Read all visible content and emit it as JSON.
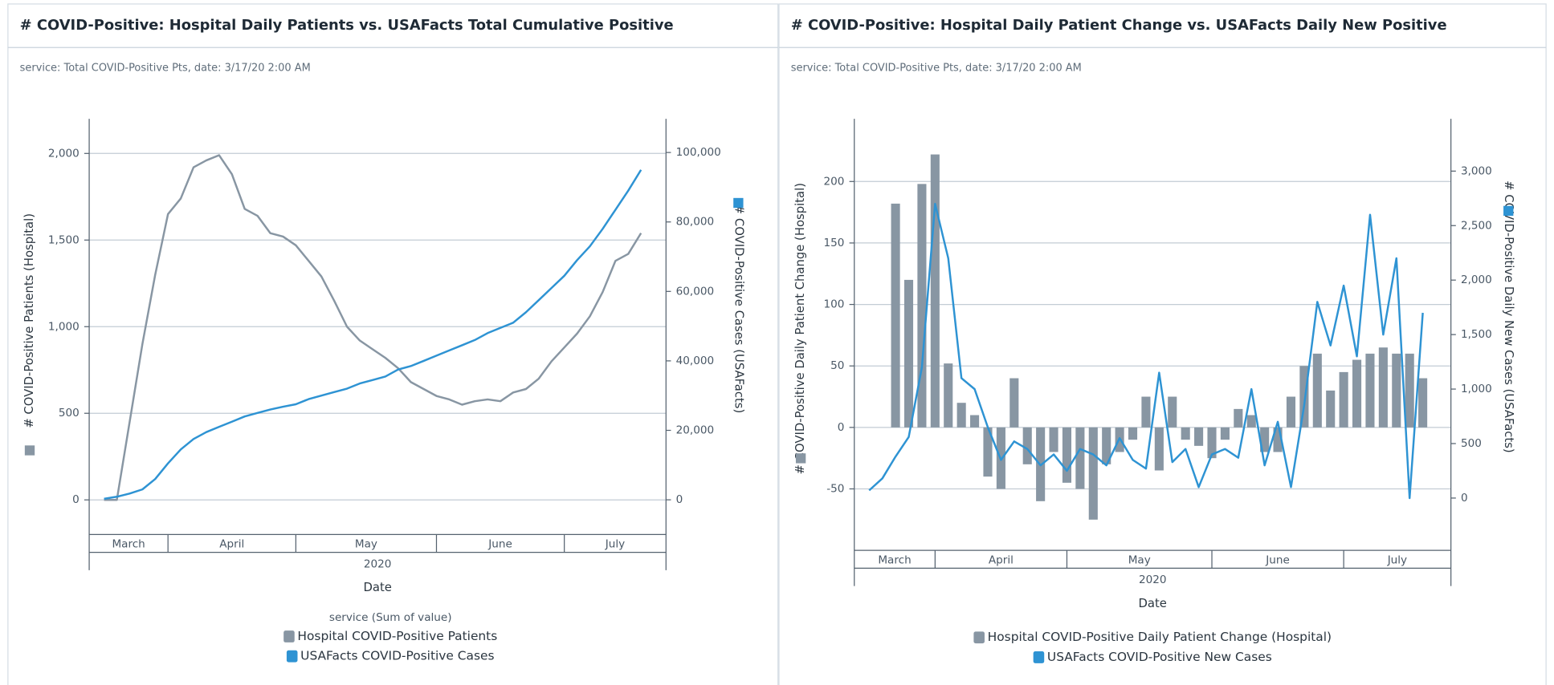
{
  "chart_data": [
    {
      "type": "combo",
      "title": "# COVID-Positive: Hospital Daily Patients vs. USAFacts Total Cumulative Positive",
      "subtitle": "service: Total COVID-Positive Pts, date: 3/17/20 2:00 AM",
      "ylabel": "# COVID-Positive Patients (Hospital)",
      "y2label": "# COVID-Positive Cases (USAFacts)",
      "xlabel": "Date",
      "x_group": "2020",
      "legend_title": "service (Sum of value)",
      "categories": [
        "March",
        null,
        null,
        null,
        null,
        "April",
        null,
        null,
        null,
        null,
        null,
        null,
        null,
        null,
        null,
        "May",
        null,
        null,
        null,
        null,
        null,
        null,
        null,
        null,
        null,
        null,
        "June",
        null,
        null,
        null,
        null,
        null,
        null,
        null,
        null,
        null,
        "July",
        null,
        null,
        null,
        null,
        null,
        null
      ],
      "series": [
        {
          "name": "Hospital COVID-Positive Patients",
          "type": "line",
          "color": "#8896a3",
          "values": [
            0,
            0,
            450,
            900,
            1300,
            1650,
            1740,
            1920,
            1960,
            1990,
            1880,
            1680,
            1640,
            1540,
            1520,
            1470,
            1380,
            1290,
            1150,
            1000,
            920,
            870,
            820,
            760,
            680,
            640,
            600,
            580,
            550,
            570,
            580,
            570,
            620,
            640,
            700,
            800,
            880,
            960,
            1060,
            1200,
            1380,
            1420,
            1540
          ]
        },
        {
          "name": "USAFacts COVID-Positive Cases",
          "type": "line",
          "axis": "y2",
          "color": "#2e93d3",
          "values": [
            300,
            900,
            1800,
            3000,
            6000,
            10500,
            14500,
            17500,
            19500,
            21000,
            22500,
            24000,
            25000,
            26000,
            26800,
            27500,
            29000,
            30000,
            31000,
            32000,
            33500,
            34500,
            35500,
            37500,
            38500,
            40000,
            41500,
            43000,
            44500,
            46000,
            48000,
            49500,
            51000,
            54000,
            57500,
            61000,
            64500,
            69000,
            73000,
            78000,
            83500,
            89000,
            95000
          ]
        }
      ],
      "ylim": [
        -200,
        2200
      ],
      "yticks": [
        0,
        500,
        {
          "value": 1000,
          "label": "1,000"
        },
        {
          "value": 1500,
          "label": "1,500"
        },
        {
          "value": 2000,
          "label": "2,000"
        }
      ],
      "y2lim": [
        -10000,
        109700
      ],
      "y2ticks": [
        0,
        {
          "value": 20000,
          "label": "20,000"
        },
        {
          "value": 40000,
          "label": "40,000"
        },
        {
          "value": 60000,
          "label": "60,000"
        },
        {
          "value": 80000,
          "label": "80,000"
        },
        {
          "value": 100000,
          "label": "100,000"
        }
      ],
      "grid": true
    },
    {
      "type": "combo",
      "title": "# COVID-Positive: Hospital Daily Patient Change vs. USAFacts Daily New Positive",
      "subtitle": "service: Total COVID-Positive Pts, date: 3/17/20 2:00 AM",
      "ylabel": "# COVID-Positive Daily Patient Change (Hospital)",
      "y2label": "# COVID-Positive Daily New Cases (USAFacts)",
      "xlabel": "Date",
      "x_group": "2020",
      "categories": [
        "March",
        null,
        null,
        null,
        null,
        "April",
        null,
        null,
        null,
        null,
        null,
        null,
        null,
        null,
        null,
        "May",
        null,
        null,
        null,
        null,
        null,
        null,
        null,
        null,
        null,
        null,
        "June",
        null,
        null,
        null,
        null,
        null,
        null,
        null,
        null,
        null,
        "July",
        null,
        null,
        null,
        null,
        null,
        null
      ],
      "series": [
        {
          "name": "Hospital COVID-Positive Daily Patient Change (Hospital)",
          "type": "bar",
          "color": "#8896a3",
          "values": [
            null,
            null,
            182,
            120,
            198,
            222,
            52,
            20,
            10,
            -40,
            -50,
            40,
            -30,
            -60,
            -20,
            -45,
            -50,
            -75,
            -30,
            -20,
            -10,
            25,
            -35,
            25,
            -10,
            -15,
            -25,
            -10,
            15,
            10,
            -20,
            -20,
            25,
            50,
            60,
            30,
            45,
            55,
            60,
            65,
            60,
            60,
            40
          ]
        },
        {
          "name": "USAFacts COVID-Positive New Cases",
          "type": "line",
          "axis": "y2",
          "color": "#2e93d3",
          "values": [
            70,
            180,
            380,
            560,
            1200,
            2700,
            2200,
            1100,
            1000,
            650,
            350,
            520,
            450,
            300,
            400,
            250,
            450,
            400,
            300,
            550,
            350,
            270,
            1150,
            330,
            450,
            100,
            400,
            450,
            370,
            1000,
            300,
            700,
            100,
            850,
            1800,
            1400,
            1950,
            1300,
            2600,
            1500,
            2200,
            0,
            1700
          ]
        }
      ],
      "ylim": [
        -100,
        251
      ],
      "yticks": [
        -50,
        0,
        50,
        100,
        150,
        200
      ],
      "y2lim": [
        -480,
        3480
      ],
      "y2ticks": [
        0,
        500,
        {
          "value": 1000,
          "label": "1,000"
        },
        {
          "value": 1500,
          "label": "1,500"
        },
        {
          "value": 2000,
          "label": "2,000"
        },
        {
          "value": 2500,
          "label": "2,500"
        },
        {
          "value": 3000,
          "label": "3,000"
        }
      ],
      "grid": true
    }
  ]
}
